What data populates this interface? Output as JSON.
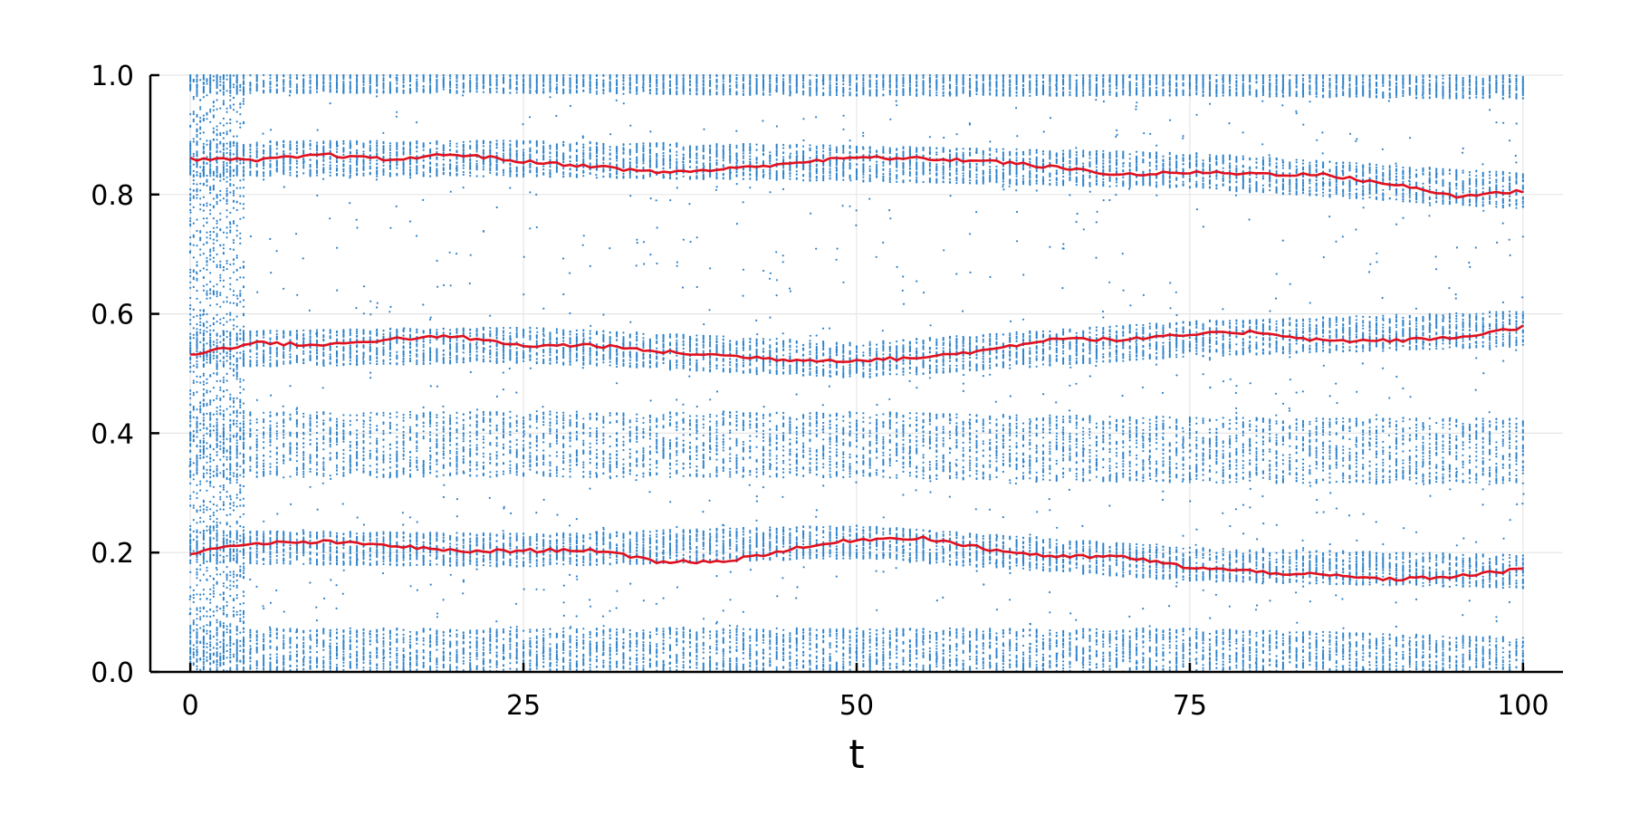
{
  "chart_data": {
    "type": "scatter",
    "title": "",
    "xlabel": "t",
    "ylabel": "",
    "xlim": [
      -3,
      103
    ],
    "ylim": [
      0,
      1
    ],
    "xticks": [
      0,
      25,
      50,
      75,
      100
    ],
    "xtick_labels": [
      "0",
      "25",
      "50",
      "75",
      "100"
    ],
    "yticks": [
      0,
      0.2,
      0.4,
      0.6,
      0.8,
      1.0
    ],
    "ytick_labels": [
      "0.0",
      "0.2",
      "0.4",
      "0.6",
      "0.8",
      "1.0"
    ],
    "grid": true,
    "legend": "none",
    "colors": {
      "points": "#2f82c9",
      "line": "#e0101e",
      "grid": "#e6e6e6",
      "axis": "#000000"
    },
    "series": [
      {
        "kind": "line",
        "color": "#e0101e",
        "x": [
          0,
          5,
          10,
          15,
          20,
          25,
          30,
          35,
          40,
          45,
          50,
          55,
          60,
          65,
          70,
          75,
          80,
          85,
          90,
          95,
          100
        ],
        "y": [
          0.86,
          0.857,
          0.867,
          0.858,
          0.868,
          0.855,
          0.848,
          0.837,
          0.842,
          0.853,
          0.862,
          0.86,
          0.856,
          0.845,
          0.833,
          0.837,
          0.835,
          0.833,
          0.818,
          0.797,
          0.806
        ]
      },
      {
        "kind": "line",
        "color": "#e0101e",
        "x": [
          0,
          5,
          10,
          15,
          20,
          25,
          30,
          35,
          40,
          45,
          50,
          55,
          60,
          65,
          70,
          75,
          80,
          85,
          90,
          95,
          100
        ],
        "y": [
          0.532,
          0.552,
          0.547,
          0.558,
          0.562,
          0.546,
          0.548,
          0.537,
          0.53,
          0.523,
          0.522,
          0.527,
          0.54,
          0.56,
          0.556,
          0.565,
          0.57,
          0.555,
          0.555,
          0.56,
          0.578
        ]
      },
      {
        "kind": "line",
        "color": "#e0101e",
        "x": [
          0,
          5,
          10,
          15,
          20,
          25,
          30,
          35,
          40,
          45,
          50,
          55,
          60,
          65,
          70,
          75,
          80,
          85,
          90,
          95,
          100
        ],
        "y": [
          0.2,
          0.215,
          0.218,
          0.212,
          0.202,
          0.203,
          0.205,
          0.185,
          0.185,
          0.205,
          0.222,
          0.225,
          0.205,
          0.193,
          0.193,
          0.175,
          0.168,
          0.162,
          0.155,
          0.16,
          0.172
        ]
      }
    ],
    "point_bands": [
      {
        "name": "band-top-edge",
        "center": [
          0.99,
          0.99,
          0.985,
          0.985,
          0.98
        ],
        "spread": 0.02
      },
      {
        "name": "band-upper",
        "center": [
          0.86,
          0.86,
          0.852,
          0.84,
          0.806
        ],
        "spread": 0.03
      },
      {
        "name": "band-middle",
        "center": [
          0.54,
          0.548,
          0.522,
          0.558,
          0.575
        ],
        "spread": 0.03
      },
      {
        "name": "band-lower-middle",
        "center": [
          0.38,
          0.382,
          0.38,
          0.372,
          0.37
        ],
        "spread": 0.055
      },
      {
        "name": "band-lower",
        "center": [
          0.21,
          0.204,
          0.218,
          0.18,
          0.168
        ],
        "spread": 0.028
      },
      {
        "name": "band-bottom",
        "center": [
          0.035,
          0.035,
          0.035,
          0.035,
          0.02
        ],
        "spread": 0.038
      }
    ]
  }
}
